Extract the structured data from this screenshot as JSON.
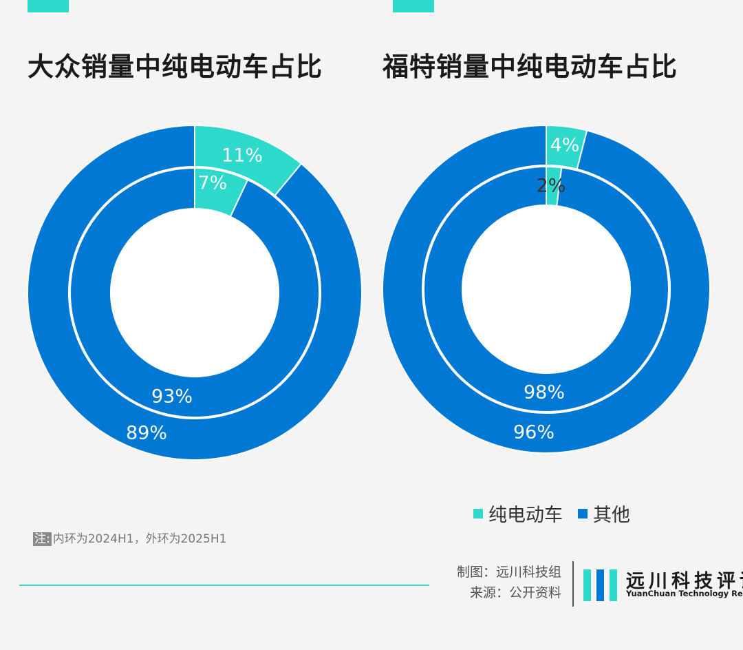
{
  "colors": {
    "ev": "#2dd9cb",
    "other": "#0078d4",
    "divider": "#2dd9cb"
  },
  "chart_data": [
    {
      "type": "pie",
      "title": "大众销量中纯电动车占比",
      "categories": [
        "纯电动车",
        "其他"
      ],
      "series": [
        {
          "name": "内环",
          "values": [
            7,
            93
          ],
          "labels": [
            "7%",
            "93%"
          ]
        },
        {
          "name": "外环",
          "values": [
            11,
            89
          ],
          "labels": [
            "11%",
            "89%"
          ]
        }
      ]
    },
    {
      "type": "pie",
      "title": "福特销量中纯电动车占比",
      "categories": [
        "纯电动车",
        "其他"
      ],
      "series": [
        {
          "name": "内环",
          "values": [
            2,
            98
          ],
          "labels": [
            "2%",
            "98%"
          ]
        },
        {
          "name": "外环",
          "values": [
            4,
            96
          ],
          "labels": [
            "4%",
            "96%"
          ]
        }
      ]
    }
  ],
  "legend": {
    "ev_label": "纯电动车",
    "other_label": "其他"
  },
  "note": {
    "label": "注:",
    "text": "内环为2024H1，外环为2025H1"
  },
  "credits": {
    "maker": "制图：远川科技组",
    "source": "来源：公开资料"
  },
  "brand": {
    "cn": "远川科技评论",
    "en": "YuanChuan Technology Review"
  }
}
